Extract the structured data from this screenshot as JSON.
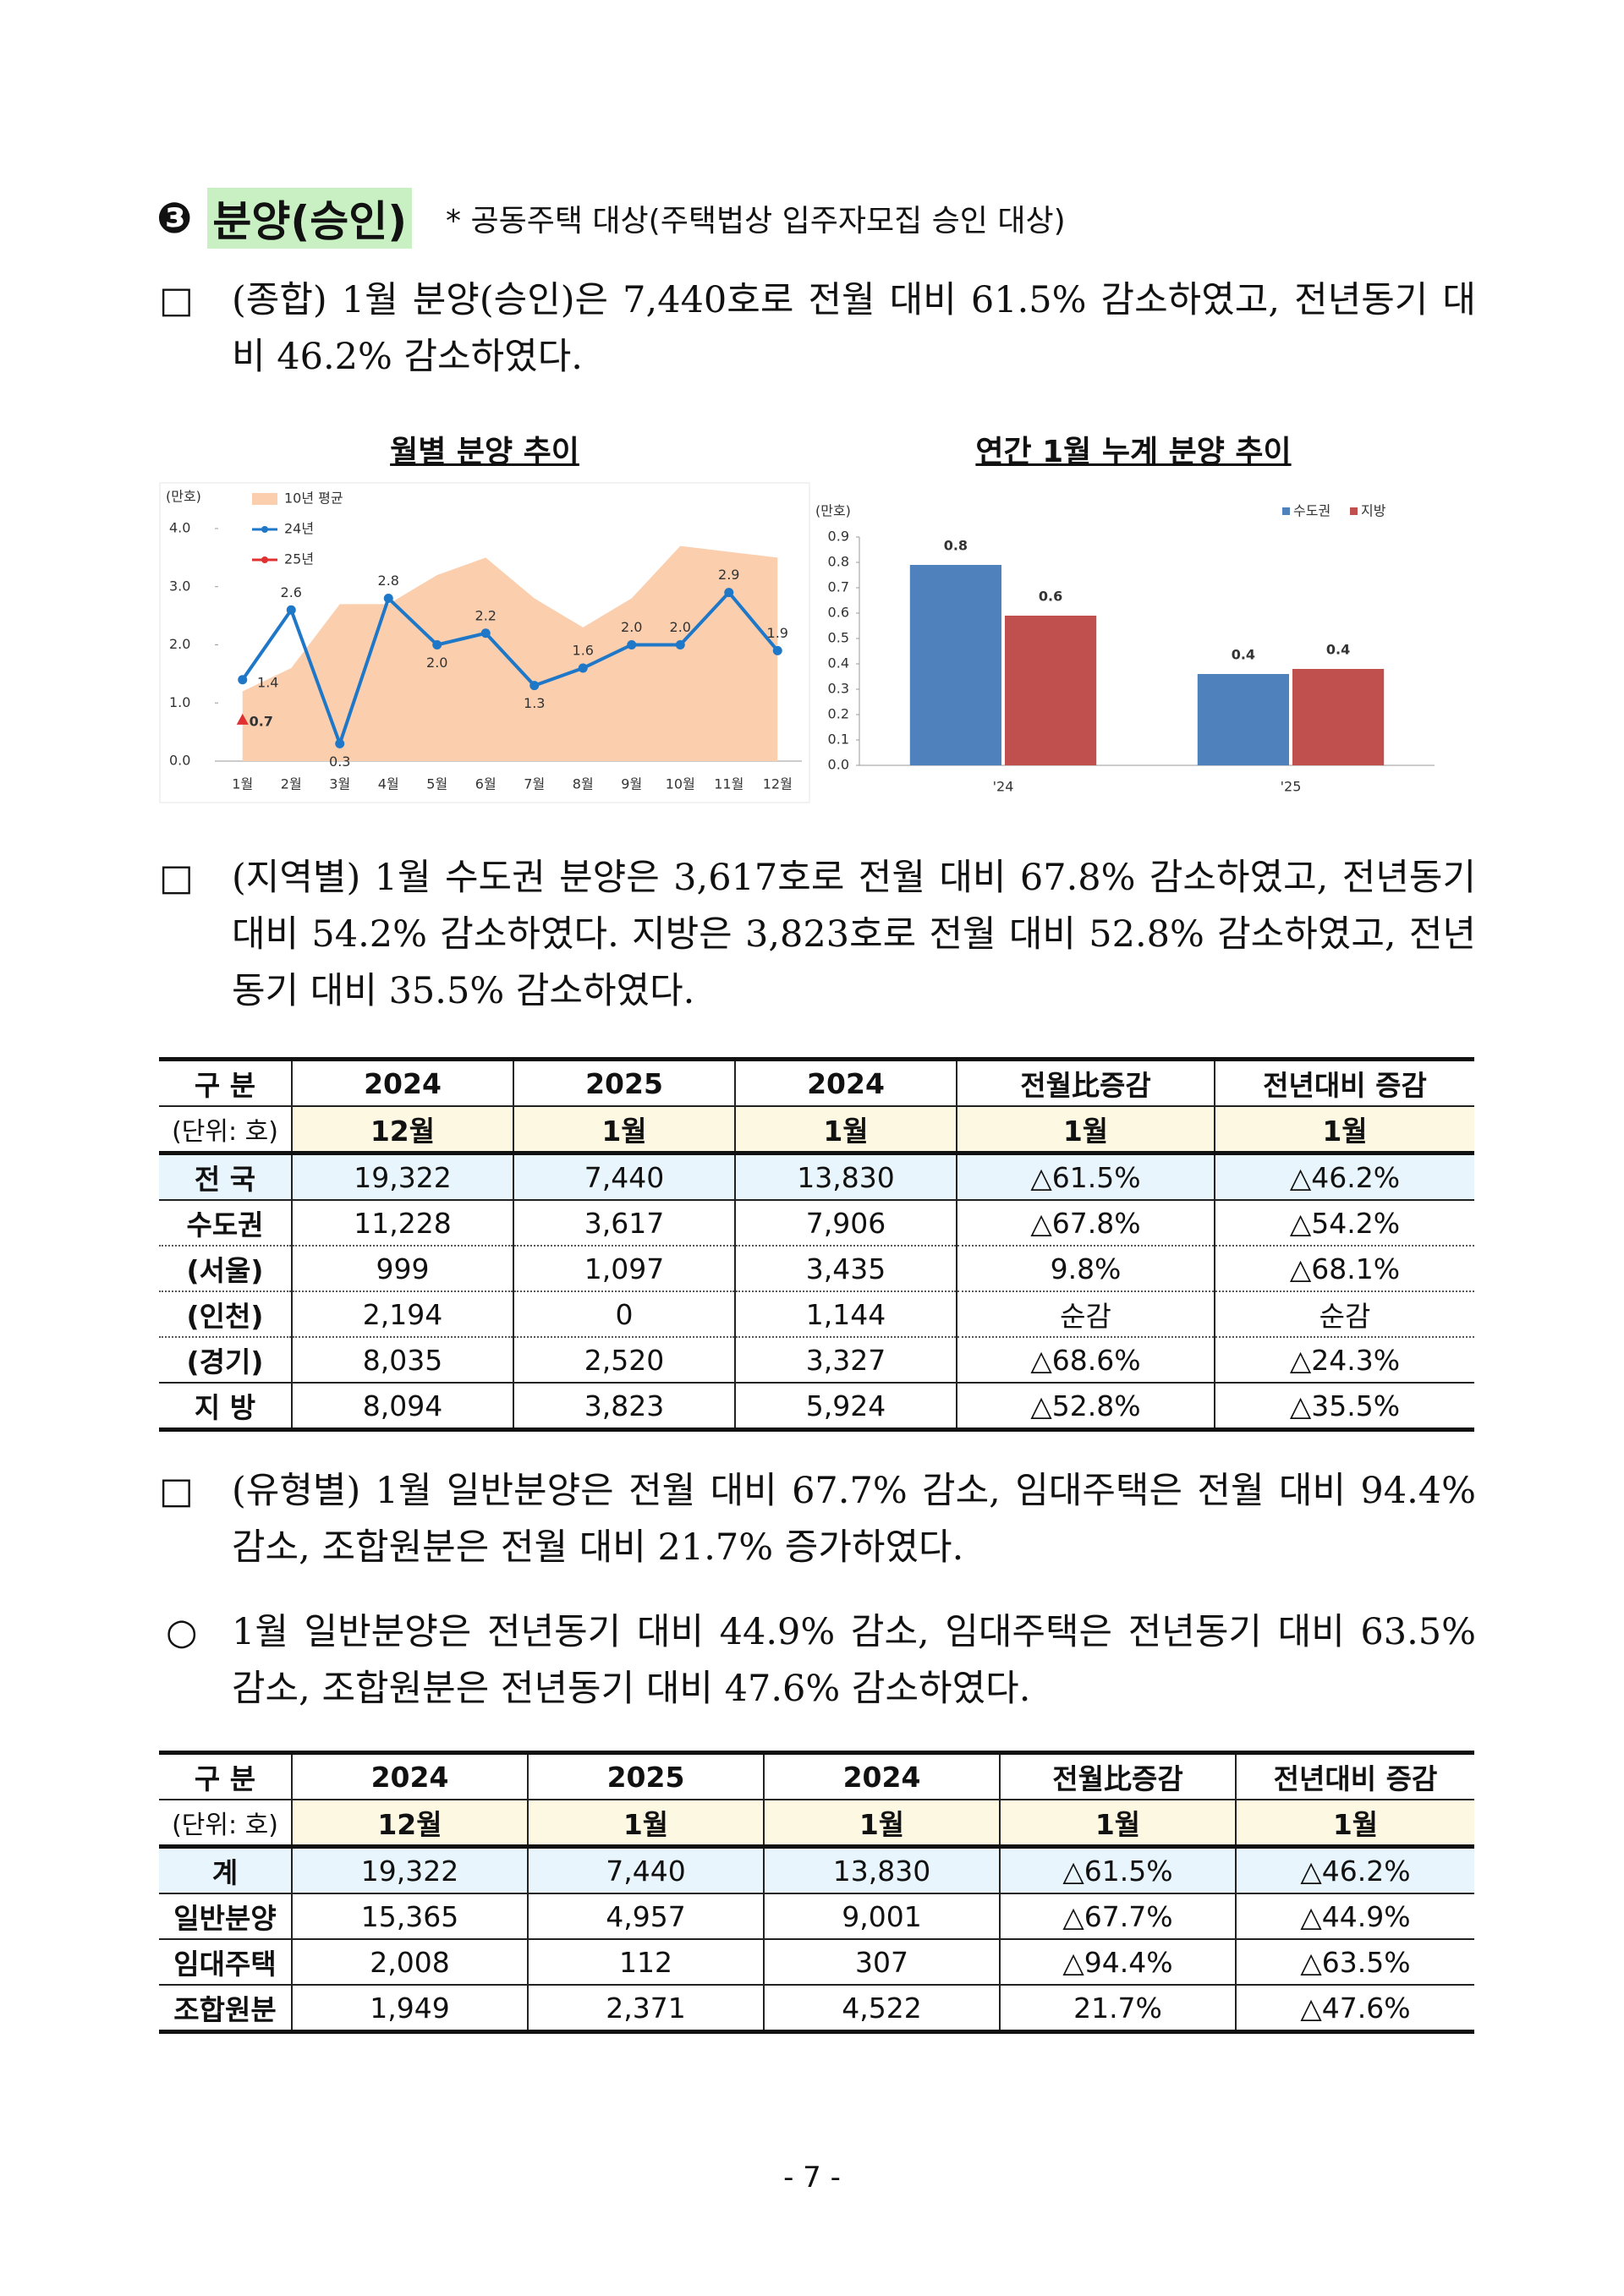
{
  "header": {
    "number": "❸",
    "title": "분양(승인)",
    "note": "* 공동주택 대상(주택법상 입주자모집 승인 대상)"
  },
  "paragraphs": [
    {
      "marker": "□",
      "text": "(종합) 1월 분양(승인)은 7,440호로 전월 대비 61.5% 감소하였고, 전년동기 대비 46.2% 감소하였다."
    },
    {
      "marker": "□",
      "text": "(지역별) 1월 수도권 분양은 3,617호로 전월 대비 67.8% 감소하였고, 전년동기 대비 54.2% 감소하였다. 지방은 3,823호로 전월 대비 52.8% 감소하였고, 전년동기 대비 35.5% 감소하였다."
    },
    {
      "marker": "□",
      "text": "(유형별) 1월 일반분양은 전월 대비 67.7% 감소, 임대주택은 전월 대비 94.4% 감소, 조합원분은 전월 대비 21.7% 증가하였다."
    },
    {
      "marker": "○",
      "text": "1월 일반분양은 전년동기 대비 44.9% 감소, 임대주택은 전년동기 대비 63.5% 감소, 조합원분은 전년동기 대비 47.6% 감소하였다."
    }
  ],
  "chart_data": [
    {
      "type": "line",
      "title": "월별 분양 추이",
      "y_label": "(만호)",
      "categories": [
        "1월",
        "2월",
        "3월",
        "4월",
        "5월",
        "6월",
        "7월",
        "8월",
        "9월",
        "10월",
        "11월",
        "12월"
      ],
      "ylim": [
        0,
        4
      ],
      "yticks": [
        {
          "value": 0,
          "label": "0.0"
        },
        {
          "value": 1,
          "label": "1.0"
        },
        {
          "value": 2,
          "label": "2.0"
        },
        {
          "value": 3,
          "label": "3.0"
        },
        {
          "value": 4,
          "label": "4.0"
        }
      ],
      "series": [
        {
          "name": "10년 평균",
          "style": "area",
          "color": "#fbcfae",
          "values": [
            1.2,
            1.6,
            2.7,
            2.7,
            3.2,
            3.5,
            2.8,
            2.3,
            2.8,
            3.7,
            3.6,
            3.5
          ]
        },
        {
          "name": "24년",
          "style": "line",
          "color": "#1f77c8",
          "values": [
            1.4,
            2.6,
            0.3,
            2.8,
            2.0,
            2.2,
            1.3,
            1.6,
            2.0,
            2.0,
            2.9,
            1.9
          ],
          "value_labels": [
            "1.4",
            "2.6",
            "0.3",
            "2.8",
            "2.0",
            "2.2",
            "1.3",
            "1.6",
            "2.0",
            "2.0",
            "2.9",
            "1.9"
          ]
        },
        {
          "name": "25년",
          "style": "line",
          "color": "#e03030",
          "values": [
            0.7,
            null,
            null,
            null,
            null,
            null,
            null,
            null,
            null,
            null,
            null,
            null
          ],
          "value_labels": [
            "0.7",
            null,
            null,
            null,
            null,
            null,
            null,
            null,
            null,
            null,
            null,
            null
          ]
        }
      ]
    },
    {
      "type": "bar",
      "title": "연간 1월 누계 분양 추이",
      "y_label": "(만호)",
      "categories": [
        "'24",
        "'25"
      ],
      "ylim": [
        0,
        0.9
      ],
      "yticks": [
        {
          "value": 0,
          "label": "0.0"
        },
        0.1,
        0.2,
        0.3,
        0.4,
        0.5,
        0.6,
        0.7,
        0.8,
        0.9
      ],
      "legend": "top-right",
      "series": [
        {
          "name": "수도권",
          "color": "#4f81bd",
          "values": [
            0.79,
            0.36
          ],
          "value_labels": [
            "0.8",
            "0.4"
          ]
        },
        {
          "name": "지방",
          "color": "#c0504d",
          "values": [
            0.59,
            0.38
          ],
          "value_labels": [
            "0.6",
            "0.4"
          ]
        }
      ]
    }
  ],
  "tables": [
    {
      "header": [
        [
          "구 분",
          "2024",
          "2025",
          "2024",
          "전월比증감",
          "전년대비 증감"
        ],
        [
          "(단위: 호)",
          "12월",
          "1월",
          "1월",
          "1월",
          "1월"
        ]
      ],
      "rows": [
        [
          "전 국",
          "19,322",
          "7,440",
          "13,830",
          "△61.5%",
          "△46.2%"
        ],
        [
          "수도권",
          "11,228",
          "3,617",
          "7,906",
          "△67.8%",
          "△54.2%"
        ],
        [
          "(서울)",
          "999",
          "1,097",
          "3,435",
          "9.8%",
          "△68.1%"
        ],
        [
          "(인천)",
          "2,194",
          "0",
          "1,144",
          "순감",
          "순감"
        ],
        [
          "(경기)",
          "8,035",
          "2,520",
          "3,327",
          "△68.6%",
          "△24.3%"
        ],
        [
          "지 방",
          "8,094",
          "3,823",
          "5,924",
          "△52.8%",
          "△35.5%"
        ]
      ]
    },
    {
      "header": [
        [
          "구 분",
          "2024",
          "2025",
          "2024",
          "전월比증감",
          "전년대비 증감"
        ],
        [
          "(단위: 호)",
          "12월",
          "1월",
          "1월",
          "1월",
          "1월"
        ]
      ],
      "rows": [
        [
          "계",
          "19,322",
          "7,440",
          "13,830",
          "△61.5%",
          "△46.2%"
        ],
        [
          "일반분양",
          "15,365",
          "4,957",
          "9,001",
          "△67.7%",
          "△44.9%"
        ],
        [
          "임대주택",
          "2,008",
          "112",
          "307",
          "△94.4%",
          "△63.5%"
        ],
        [
          "조합원분",
          "1,949",
          "2,371",
          "4,522",
          "21.7%",
          "△47.6%"
        ]
      ]
    }
  ],
  "footer": {
    "page": "- 7 -"
  }
}
